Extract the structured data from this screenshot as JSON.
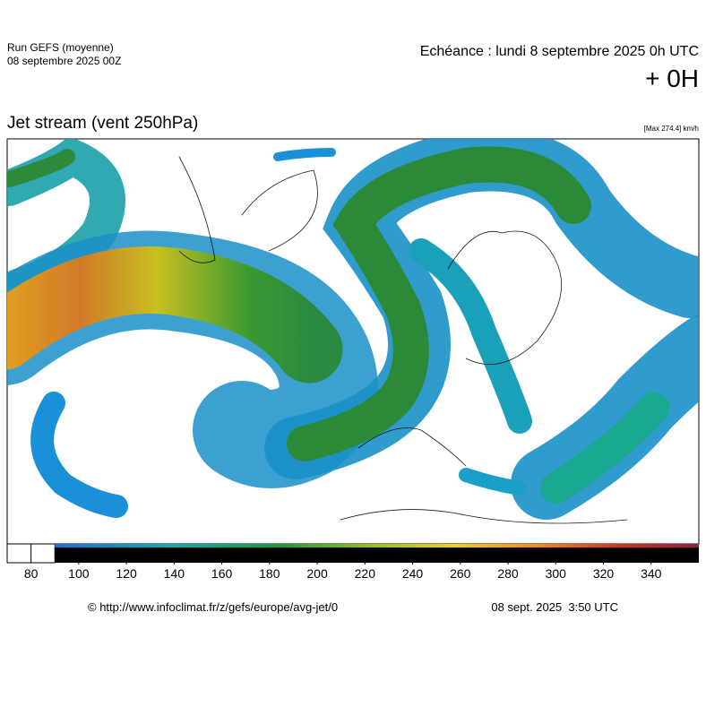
{
  "header": {
    "run": "Run GEFS (moyenne)",
    "run_date": "08 septembre 2025 00Z",
    "echeance": "Echéance : lundi 8 septembre 2025 0h UTC",
    "offset": "+ 0H",
    "title": "Jet stream (vent 250hPa)",
    "max": "[Max 274.4] km/h"
  },
  "colorbar": {
    "range": [
      70,
      360
    ],
    "ticks": [
      80,
      100,
      120,
      140,
      160,
      180,
      200,
      220,
      240,
      260,
      280,
      300,
      320,
      340
    ],
    "white_until": 90
  },
  "footer": {
    "source": "© http://www.infoclimat.fr/z/gefs/europe/avg-jet/0",
    "generated": "08 sept. 2025  3:50 UTC"
  }
}
